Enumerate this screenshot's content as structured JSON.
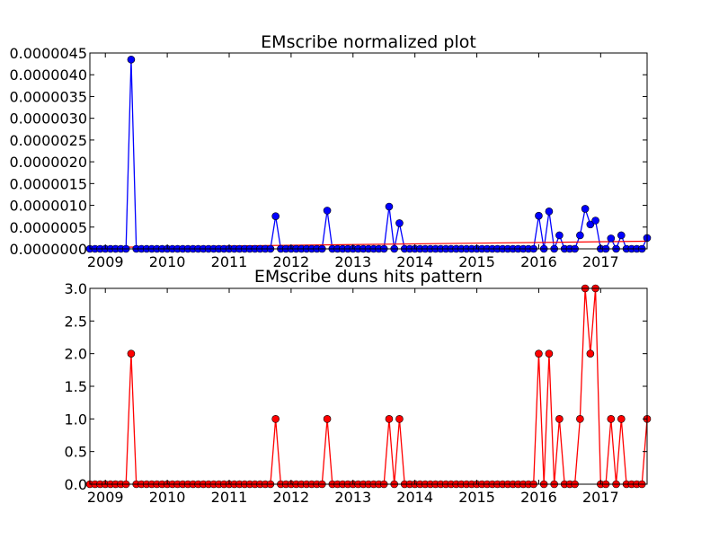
{
  "chart_data": [
    {
      "type": "line",
      "title": "EMscribe normalized plot",
      "x_unit": "month",
      "x_range": [
        "2008-10",
        "2017-10"
      ],
      "x_ticks": [
        "2009",
        "2010",
        "2011",
        "2012",
        "2013",
        "2014",
        "2015",
        "2016",
        "2017"
      ],
      "y_ticks": [
        "0.0000000",
        "0.0000005",
        "0.0000010",
        "0.0000015",
        "0.0000020",
        "0.0000025",
        "0.0000030",
        "0.0000035",
        "0.0000040",
        "0.0000045"
      ],
      "ylim": [
        0,
        4.5e-06
      ],
      "series": [
        {
          "color": "#0000ff",
          "marker": "circle",
          "x": [
            "2008-10",
            "2008-11",
            "2008-12",
            "2009-01",
            "2009-02",
            "2009-03",
            "2009-04",
            "2009-05",
            "2009-06",
            "2009-07",
            "2009-08",
            "2009-09",
            "2009-10",
            "2009-11",
            "2009-12",
            "2010-01",
            "2010-02",
            "2010-03",
            "2010-04",
            "2010-05",
            "2010-06",
            "2010-07",
            "2010-08",
            "2010-09",
            "2010-10",
            "2010-11",
            "2010-12",
            "2011-01",
            "2011-02",
            "2011-03",
            "2011-04",
            "2011-05",
            "2011-06",
            "2011-07",
            "2011-08",
            "2011-09",
            "2011-10",
            "2011-11",
            "2011-12",
            "2012-01",
            "2012-02",
            "2012-03",
            "2012-04",
            "2012-05",
            "2012-06",
            "2012-07",
            "2012-08",
            "2012-09",
            "2012-10",
            "2012-11",
            "2012-12",
            "2013-01",
            "2013-02",
            "2013-03",
            "2013-04",
            "2013-05",
            "2013-06",
            "2013-07",
            "2013-08",
            "2013-09",
            "2013-10",
            "2013-11",
            "2013-12",
            "2014-01",
            "2014-02",
            "2014-03",
            "2014-04",
            "2014-05",
            "2014-06",
            "2014-07",
            "2014-08",
            "2014-09",
            "2014-10",
            "2014-11",
            "2014-12",
            "2015-01",
            "2015-02",
            "2015-03",
            "2015-04",
            "2015-05",
            "2015-06",
            "2015-07",
            "2015-08",
            "2015-09",
            "2015-10",
            "2015-11",
            "2015-12",
            "2016-01",
            "2016-02",
            "2016-03",
            "2016-04",
            "2016-05",
            "2016-06",
            "2016-07",
            "2016-08",
            "2016-09",
            "2016-10",
            "2016-11",
            "2016-12",
            "2017-01",
            "2017-02",
            "2017-03",
            "2017-04",
            "2017-05",
            "2017-06",
            "2017-07",
            "2017-08",
            "2017-09",
            "2017-10"
          ],
          "values": [
            0,
            0,
            0,
            0,
            0,
            0,
            0,
            0,
            4.35e-06,
            0,
            0,
            0,
            0,
            0,
            0,
            0,
            0,
            0,
            0,
            0,
            0,
            0,
            0,
            0,
            0,
            0,
            0,
            0,
            0,
            0,
            0,
            0,
            0,
            0,
            0,
            0,
            7.5e-07,
            0,
            0,
            0,
            0,
            0,
            0,
            0,
            0,
            0,
            8.8e-07,
            0,
            0,
            0,
            0,
            0,
            0,
            0,
            0,
            0,
            0,
            0,
            9.7e-07,
            0,
            5.9e-07,
            0,
            0,
            0,
            0,
            0,
            0,
            0,
            0,
            0,
            0,
            0,
            0,
            0,
            0,
            0,
            0,
            0,
            0,
            0,
            0,
            0,
            0,
            0,
            0,
            0,
            0,
            7.6e-07,
            0,
            8.6e-07,
            0,
            3.1e-07,
            0,
            0,
            0,
            3.1e-07,
            9.2e-07,
            5.6e-07,
            6.5e-07,
            0,
            0,
            2.4e-07,
            0,
            3.1e-07,
            0,
            0,
            0,
            0,
            2.5e-07
          ]
        }
      ],
      "trendline": {
        "color": "#ff0000",
        "x": [
          "2008-10",
          "2017-10"
        ],
        "y": [
          3e-08,
          1.75e-07
        ]
      }
    },
    {
      "type": "line",
      "title": "EMscribe duns hits pattern",
      "x_unit": "month",
      "x_range": [
        "2008-10",
        "2017-10"
      ],
      "x_ticks": [
        "2009",
        "2010",
        "2011",
        "2012",
        "2013",
        "2014",
        "2015",
        "2016",
        "2017"
      ],
      "y_ticks": [
        "0.0",
        "0.5",
        "1.0",
        "1.5",
        "2.0",
        "2.5",
        "3.0"
      ],
      "ylim": [
        0,
        3
      ],
      "series": [
        {
          "color": "#ff0000",
          "marker": "circle",
          "x": [
            "2008-10",
            "2008-11",
            "2008-12",
            "2009-01",
            "2009-02",
            "2009-03",
            "2009-04",
            "2009-05",
            "2009-06",
            "2009-07",
            "2009-08",
            "2009-09",
            "2009-10",
            "2009-11",
            "2009-12",
            "2010-01",
            "2010-02",
            "2010-03",
            "2010-04",
            "2010-05",
            "2010-06",
            "2010-07",
            "2010-08",
            "2010-09",
            "2010-10",
            "2010-11",
            "2010-12",
            "2011-01",
            "2011-02",
            "2011-03",
            "2011-04",
            "2011-05",
            "2011-06",
            "2011-07",
            "2011-08",
            "2011-09",
            "2011-10",
            "2011-11",
            "2011-12",
            "2012-01",
            "2012-02",
            "2012-03",
            "2012-04",
            "2012-05",
            "2012-06",
            "2012-07",
            "2012-08",
            "2012-09",
            "2012-10",
            "2012-11",
            "2012-12",
            "2013-01",
            "2013-02",
            "2013-03",
            "2013-04",
            "2013-05",
            "2013-06",
            "2013-07",
            "2013-08",
            "2013-09",
            "2013-10",
            "2013-11",
            "2013-12",
            "2014-01",
            "2014-02",
            "2014-03",
            "2014-04",
            "2014-05",
            "2014-06",
            "2014-07",
            "2014-08",
            "2014-09",
            "2014-10",
            "2014-11",
            "2014-12",
            "2015-01",
            "2015-02",
            "2015-03",
            "2015-04",
            "2015-05",
            "2015-06",
            "2015-07",
            "2015-08",
            "2015-09",
            "2015-10",
            "2015-11",
            "2015-12",
            "2016-01",
            "2016-02",
            "2016-03",
            "2016-04",
            "2016-05",
            "2016-06",
            "2016-07",
            "2016-08",
            "2016-09",
            "2016-10",
            "2016-11",
            "2016-12",
            "2017-01",
            "2017-02",
            "2017-03",
            "2017-04",
            "2017-05",
            "2017-06",
            "2017-07",
            "2017-08",
            "2017-09",
            "2017-10"
          ],
          "values": [
            0,
            0,
            0,
            0,
            0,
            0,
            0,
            0,
            2,
            0,
            0,
            0,
            0,
            0,
            0,
            0,
            0,
            0,
            0,
            0,
            0,
            0,
            0,
            0,
            0,
            0,
            0,
            0,
            0,
            0,
            0,
            0,
            0,
            0,
            0,
            0,
            1,
            0,
            0,
            0,
            0,
            0,
            0,
            0,
            0,
            0,
            1,
            0,
            0,
            0,
            0,
            0,
            0,
            0,
            0,
            0,
            0,
            0,
            1,
            0,
            1,
            0,
            0,
            0,
            0,
            0,
            0,
            0,
            0,
            0,
            0,
            0,
            0,
            0,
            0,
            0,
            0,
            0,
            0,
            0,
            0,
            0,
            0,
            0,
            0,
            0,
            0,
            2,
            0,
            2,
            0,
            1,
            0,
            0,
            0,
            1,
            3,
            2,
            3,
            0,
            0,
            1,
            0,
            1,
            0,
            0,
            0,
            0,
            1
          ]
        }
      ]
    }
  ]
}
